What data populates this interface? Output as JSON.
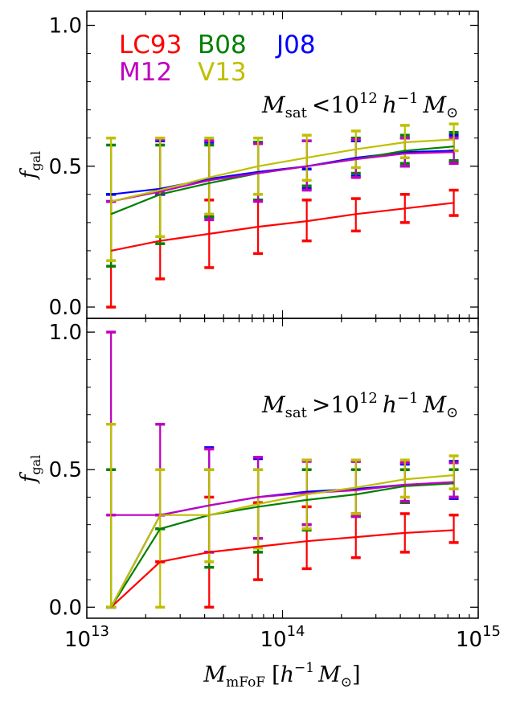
{
  "chart_data": {
    "type": "line",
    "xscale": "log",
    "xlim": [
      10000000000000.0,
      1000000000000000.0
    ],
    "x_tick_labels": [
      {
        "value": 10000000000000.0,
        "base": "10",
        "exp": "13"
      },
      {
        "value": 100000000000000.0,
        "base": "10",
        "exp": "14"
      },
      {
        "value": 1000000000000000.0,
        "base": "10",
        "exp": "15"
      }
    ],
    "xlabel": {
      "var": "M",
      "sub": "mFoF",
      "open": "[",
      "h": "h",
      "sup": "−1",
      "m": "M",
      "sun": "⊙",
      "close": "]"
    },
    "x": [
      13300000000000.0,
      23700000000000.0,
      42200000000000.0,
      75000000000000.0,
      133000000000000.0,
      237000000000000.0,
      422000000000000.0,
      750000000000000.0
    ],
    "legend": [
      {
        "key": "LC93",
        "label": "LC93",
        "color": "#ff0000"
      },
      {
        "key": "B08",
        "label": "B08",
        "color": "#008000"
      },
      {
        "key": "J08",
        "label": "J08",
        "color": "#0000ff"
      },
      {
        "key": "M12",
        "label": "M12",
        "color": "#bf00bf"
      },
      {
        "key": "V13",
        "label": "V13",
        "color": "#bfbf00"
      }
    ],
    "panels": [
      {
        "ylabel": {
          "var": "f",
          "sub": "gal"
        },
        "ylim": [
          -0.04,
          1.05
        ],
        "yticks": [
          0.0,
          0.5,
          1.0
        ],
        "ytick_labels": [
          "0.0",
          "0.5",
          "1.0"
        ],
        "annotation": {
          "var": "M",
          "sub": "sat",
          "op": "<",
          "base": "10",
          "exp": "12",
          "h": "h",
          "hexp": "−1",
          "m": "M",
          "sun": "⊙"
        },
        "series": [
          {
            "key": "LC93",
            "values": [
              0.2,
              0.235,
              0.26,
              0.285,
              0.305,
              0.33,
              0.35,
              0.37
            ],
            "low": [
              0.0,
              0.1,
              0.14,
              0.19,
              0.235,
              0.27,
              0.3,
              0.325
            ],
            "high": [
              0.4,
              0.4,
              0.38,
              0.38,
              0.38,
              0.385,
              0.4,
              0.415
            ]
          },
          {
            "key": "J08",
            "values": [
              0.4,
              0.42,
              0.455,
              0.48,
              0.5,
              0.53,
              0.55,
              0.555
            ],
            "low": [
              0.4,
              0.4,
              0.32,
              0.38,
              0.42,
              0.465,
              0.5,
              0.515
            ],
            "high": [
              0.4,
              0.59,
              0.585,
              0.585,
              0.49,
              0.59,
              0.6,
              0.61
            ]
          },
          {
            "key": "B08",
            "values": [
              0.33,
              0.4,
              0.44,
              0.475,
              0.5,
              0.525,
              0.555,
              0.57
            ],
            "low": [
              0.145,
              0.225,
              0.32,
              0.38,
              0.43,
              0.475,
              0.51,
              0.52
            ],
            "high": [
              0.575,
              0.575,
              0.575,
              0.585,
              0.59,
              0.6,
              0.61,
              0.62
            ]
          },
          {
            "key": "M12",
            "values": [
              0.375,
              0.41,
              0.45,
              0.475,
              0.5,
              0.525,
              0.545,
              0.55
            ],
            "low": [
              0.375,
              0.405,
              0.31,
              0.375,
              0.415,
              0.46,
              0.5,
              0.51
            ],
            "high": [
              0.375,
              0.595,
              0.59,
              0.58,
              0.59,
              0.595,
              0.6,
              0.6
            ]
          },
          {
            "key": "V13",
            "values": [
              0.375,
              0.415,
              0.46,
              0.5,
              0.53,
              0.56,
              0.585,
              0.595
            ],
            "low": [
              0.165,
              0.25,
              0.33,
              0.4,
              0.45,
              0.495,
              0.53,
              0.555
            ],
            "high": [
              0.6,
              0.6,
              0.6,
              0.6,
              0.61,
              0.625,
              0.645,
              0.65
            ]
          }
        ]
      },
      {
        "ylabel": {
          "var": "f",
          "sub": "gal"
        },
        "ylim": [
          -0.04,
          1.05
        ],
        "yticks": [
          0.0,
          0.5,
          1.0
        ],
        "ytick_labels": [
          "0.0",
          "0.5",
          "1.0"
        ],
        "annotation": {
          "var": "M",
          "sub": "sat",
          "op": ">",
          "base": "10",
          "exp": "12",
          "h": "h",
          "hexp": "−1",
          "m": "M",
          "sun": "⊙"
        },
        "series": [
          {
            "key": "LC93",
            "values": [
              0.0,
              0.165,
              0.2,
              0.22,
              0.24,
              0.255,
              0.27,
              0.28
            ],
            "low": [
              0.0,
              0.165,
              0.0,
              0.1,
              0.14,
              0.18,
              0.2,
              0.235
            ],
            "high": [
              0.0,
              0.165,
              0.4,
              0.38,
              0.365,
              0.34,
              0.34,
              0.335
            ]
          },
          {
            "key": "J08",
            "values": [
              0.0,
              0.335,
              0.37,
              0.4,
              0.42,
              0.43,
              0.445,
              0.45
            ],
            "low": [
              0.0,
              0.335,
              0.2,
              0.25,
              0.3,
              0.33,
              0.38,
              0.395
            ],
            "high": [
              0.0,
              0.335,
              0.58,
              0.54,
              0.535,
              0.53,
              0.52,
              0.53
            ]
          },
          {
            "key": "B08",
            "values": [
              0.0,
              0.285,
              0.335,
              0.365,
              0.39,
              0.41,
              0.44,
              0.45
            ],
            "low": [
              0.0,
              0.285,
              0.145,
              0.2,
              0.28,
              0.33,
              0.38,
              0.4
            ],
            "high": [
              0.5,
              0.285,
              0.5,
              0.5,
              0.5,
              0.5,
              0.5,
              0.5
            ]
          },
          {
            "key": "M12",
            "values": [
              0.335,
              0.335,
              0.37,
              0.4,
              0.415,
              0.425,
              0.445,
              0.455
            ],
            "low": [
              0.335,
              0.335,
              0.2,
              0.25,
              0.3,
              0.33,
              0.385,
              0.4
            ],
            "high": [
              1.0,
              0.665,
              0.575,
              0.545,
              0.53,
              0.53,
              0.525,
              0.525
            ]
          },
          {
            "key": "V13",
            "values": [
              0.0,
              0.335,
              0.335,
              0.375,
              0.41,
              0.435,
              0.465,
              0.48
            ],
            "low": [
              0.0,
              0.0,
              0.165,
              0.215,
              0.285,
              0.34,
              0.4,
              0.43
            ],
            "high": [
              0.665,
              0.5,
              0.5,
              0.5,
              0.535,
              0.535,
              0.535,
              0.55
            ]
          }
        ]
      }
    ]
  }
}
